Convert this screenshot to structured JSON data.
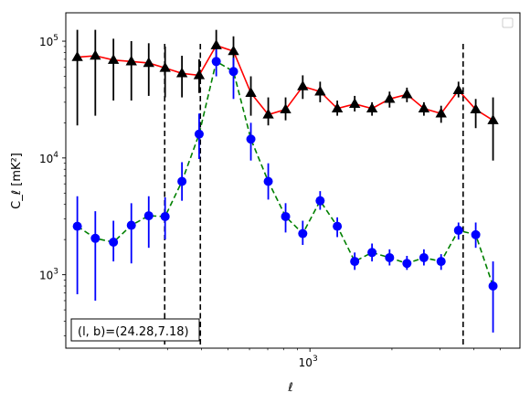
{
  "chart_data": {
    "type": "scatter",
    "title": "",
    "xlabel": "ℓ",
    "ylabel": "C_ℓ  [mK²]",
    "x_scale": "log",
    "y_scale": "log",
    "xlim": [
      127,
      5900
    ],
    "ylim": [
      235,
      175000
    ],
    "x_ticks": [
      {
        "value": 1000,
        "base": "10",
        "exp": "3"
      }
    ],
    "y_ticks": [
      {
        "value": 1000,
        "base": "10",
        "exp": "3"
      },
      {
        "value": 10000,
        "base": "10",
        "exp": "4"
      },
      {
        "value": 100000,
        "base": "10",
        "exp": "5"
      }
    ],
    "legend": "top-right, empty",
    "annotation": "(l, b)=(24.28,7.18)",
    "vlines": [
      {
        "x": 293,
        "style": "dashed",
        "color": "#000000"
      },
      {
        "x": 396,
        "style": "dashed",
        "color": "#000000"
      },
      {
        "x": 3650,
        "style": "dashed",
        "color": "#000000"
      }
    ],
    "series": [
      {
        "marker": "triangle",
        "marker_color": "#000000",
        "line_color": "#ff0000",
        "line_style": "solid",
        "x": [
          140,
          163,
          190,
          221,
          256,
          294,
          339,
          392,
          453,
          524,
          607,
          703,
          814,
          941,
          1090,
          1260,
          1460,
          1690,
          1960,
          2270,
          2620,
          3030,
          3510,
          4060,
          4700
        ],
        "y": [
          73000,
          75000,
          69000,
          67000,
          65000,
          59000,
          53000,
          51000,
          92000,
          82000,
          36000,
          23500,
          26000,
          41000,
          37000,
          26500,
          29000,
          26500,
          32000,
          35000,
          26500,
          24000,
          38000,
          26000,
          21000
        ],
        "y_lo": [
          19000,
          23000,
          31000,
          31000,
          34000,
          33000,
          33000,
          36000,
          72000,
          60000,
          23000,
          19000,
          21000,
          32000,
          30000,
          23000,
          25000,
          23000,
          27000,
          30000,
          23000,
          20000,
          33000,
          18000,
          9500
        ],
        "y_hi": [
          125000,
          125000,
          105000,
          100000,
          96000,
          90000,
          75000,
          70000,
          125000,
          110000,
          50000,
          33000,
          33000,
          51000,
          45000,
          31000,
          34000,
          30000,
          37000,
          40000,
          30000,
          28000,
          45000,
          32000,
          33000
        ]
      },
      {
        "marker": "circle",
        "marker_color": "#0000ff",
        "line_color": "#008000",
        "line_style": "dashed",
        "x": [
          140,
          163,
          190,
          221,
          256,
          294,
          339,
          392,
          453,
          524,
          607,
          703,
          814,
          941,
          1090,
          1260,
          1460,
          1690,
          1960,
          2270,
          2620,
          3030,
          3510,
          4060,
          4700
        ],
        "y": [
          2600,
          2050,
          1900,
          2650,
          3200,
          3150,
          6300,
          16000,
          67000,
          55000,
          14500,
          6300,
          3150,
          2250,
          4300,
          2600,
          1300,
          1550,
          1400,
          1250,
          1400,
          1300,
          2400,
          2200,
          800
        ],
        "y_lo": [
          680,
          600,
          1300,
          1250,
          1700,
          2000,
          4300,
          9800,
          50000,
          32000,
          9500,
          4400,
          2300,
          1800,
          3600,
          2100,
          1100,
          1300,
          1200,
          1100,
          1200,
          1100,
          2000,
          1700,
          320
        ],
        "y_hi": [
          4700,
          3500,
          2900,
          4100,
          4700,
          4600,
          9200,
          24000,
          85000,
          72000,
          20000,
          9000,
          4100,
          2900,
          5200,
          3100,
          1550,
          1850,
          1650,
          1450,
          1650,
          1500,
          2800,
          2800,
          1300
        ]
      }
    ]
  }
}
